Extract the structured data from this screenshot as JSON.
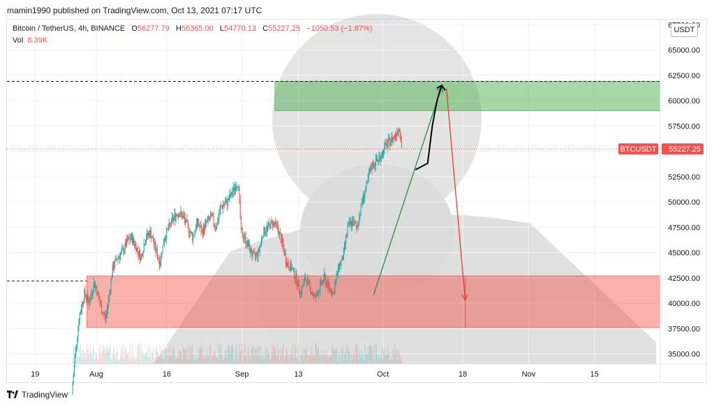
{
  "header": {
    "text": "mamin1990 published on TradingView.com, Oct 13, 2021 07:17 UTC"
  },
  "legend": {
    "symbol": "Bitcoin / TetherUS, 4h, BINANCE",
    "o_label": "O",
    "o": "56277.79",
    "h_label": "H",
    "h": "56365.00",
    "l_label": "L",
    "l": "54770.13",
    "c_label": "C",
    "c": "55227.25",
    "change": "−1050.53 (−1.87%)",
    "vol_label": "Vol",
    "vol": "8.39K"
  },
  "currency": "USDT",
  "price_tag": {
    "symbol": "BTCUSDT",
    "value": "55227.25"
  },
  "footer": {
    "brand": "TradingView"
  },
  "colors": {
    "up": "#26a69a",
    "down": "#ef5350",
    "green_zone": "#4caf50",
    "red_zone": "#f44336"
  },
  "chart_data": {
    "type": "candlestick",
    "title": "Bitcoin / TetherUS, 4h, BINANCE",
    "ylim": [
      34000,
      68000
    ],
    "y_ticks": [
      35000,
      37500,
      40000,
      42500,
      45000,
      47500,
      50000,
      52500,
      55000,
      57500,
      60000,
      62500,
      65000,
      67500
    ],
    "y_tick_labels": [
      "35000.00",
      "37500.00",
      "40000.00",
      "42500.00",
      "45000.00",
      "47500.00",
      "50000.00",
      "52500.00",
      "55000.00",
      "57500.00",
      "60000.00",
      "62500.00",
      "65000.00",
      "67500.00"
    ],
    "x_ticks": [
      {
        "label": "19",
        "day": 19
      },
      {
        "label": "Aug",
        "day": 32
      },
      {
        "label": "16",
        "day": 47
      },
      {
        "label": "Sep",
        "day": 63
      },
      {
        "label": "13",
        "day": 75
      },
      {
        "label": "Oct",
        "day": 93
      },
      {
        "label": "18",
        "day": 110
      },
      {
        "label": "Nov",
        "day": 124
      },
      {
        "label": "15",
        "day": 138
      }
    ],
    "xlim": [
      13,
      152
    ],
    "price_path": [
      [
        26.8,
        31000
      ],
      [
        27.5,
        35000
      ],
      [
        28.5,
        39000
      ],
      [
        29.5,
        41000
      ],
      [
        30.5,
        40000
      ],
      [
        31.5,
        42000
      ],
      [
        32,
        41500
      ],
      [
        33,
        39500
      ],
      [
        34,
        38500
      ],
      [
        34.5,
        40000
      ],
      [
        35.5,
        43500
      ],
      [
        36.5,
        44500
      ],
      [
        37.5,
        45000
      ],
      [
        38.5,
        46000
      ],
      [
        39.5,
        46500
      ],
      [
        40.5,
        45500
      ],
      [
        41.5,
        44500
      ],
      [
        42.5,
        46500
      ],
      [
        43.5,
        47000
      ],
      [
        44.5,
        45500
      ],
      [
        45.5,
        44000
      ],
      [
        46.5,
        46500
      ],
      [
        47.5,
        47500
      ],
      [
        48.5,
        48500
      ],
      [
        49.5,
        49000
      ],
      [
        50.5,
        48500
      ],
      [
        51.5,
        47500
      ],
      [
        52.5,
        46500
      ],
      [
        53.5,
        48000
      ],
      [
        54.5,
        47000
      ],
      [
        55.5,
        48000
      ],
      [
        56.5,
        48500
      ],
      [
        57.5,
        47500
      ],
      [
        58.5,
        49500
      ],
      [
        59.5,
        49800
      ],
      [
        60.5,
        50500
      ],
      [
        61.5,
        51500
      ],
      [
        62.2,
        52000
      ],
      [
        62.8,
        47000
      ],
      [
        63.5,
        46500
      ],
      [
        64.5,
        45500
      ],
      [
        65.5,
        44500
      ],
      [
        66.5,
        45000
      ],
      [
        67.5,
        47000
      ],
      [
        68.5,
        47500
      ],
      [
        69.5,
        48000
      ],
      [
        70.5,
        47500
      ],
      [
        71.5,
        46000
      ],
      [
        72.5,
        44000
      ],
      [
        73.5,
        43500
      ],
      [
        74.5,
        42500
      ],
      [
        75.5,
        41000
      ],
      [
        76.5,
        42500
      ],
      [
        77.5,
        41500
      ],
      [
        78.5,
        40500
      ],
      [
        79.5,
        41500
      ],
      [
        80.5,
        42500
      ],
      [
        81.5,
        41500
      ],
      [
        82.5,
        41000
      ],
      [
        83.5,
        43500
      ],
      [
        84.5,
        44500
      ],
      [
        85.5,
        47500
      ],
      [
        86.5,
        48000
      ],
      [
        87.5,
        47500
      ],
      [
        88.5,
        50000
      ],
      [
        89.5,
        51500
      ],
      [
        90.5,
        53500
      ],
      [
        91.5,
        54000
      ],
      [
        92.5,
        54500
      ],
      [
        93.5,
        55500
      ],
      [
        94.5,
        56000
      ],
      [
        95.5,
        56500
      ],
      [
        96.5,
        57500
      ],
      [
        97,
        55200
      ]
    ],
    "volume_scale": [
      0,
      1
    ]
  },
  "annotations": {
    "resistance_line": 61900,
    "support_line": 42200,
    "current_line": 55227.25,
    "green_zone": {
      "from_day": 70,
      "to_day": 152,
      "low": 59000,
      "high": 61900
    },
    "red_zone": {
      "from_day": 30,
      "to_day": 152,
      "low": 37600,
      "high": 42700
    },
    "green_arrow": [
      [
        91,
        40800
      ],
      [
        105.5,
        61400
      ]
    ],
    "red_arrow": [
      [
        106.5,
        61200
      ],
      [
        110.5,
        40300
      ]
    ],
    "projection_curve": [
      [
        100,
        53200
      ],
      [
        102.5,
        53800
      ],
      [
        103.5,
        57500
      ],
      [
        104.5,
        60000
      ],
      [
        105.5,
        61500
      ]
    ]
  }
}
